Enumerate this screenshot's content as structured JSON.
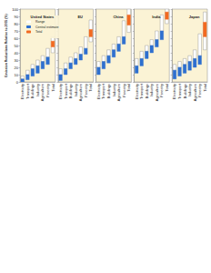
{
  "chart_data": [
    {
      "type": "range_bar",
      "title": "United States",
      "ylabel": "Emission Reductions Relative to 2005 (%)",
      "categories": [
        "Electricity",
        "Transport",
        "Buildings",
        "Industry",
        "Agriculture",
        "Forestry",
        "Total"
      ],
      "series": [
        {
          "name": "Range",
          "color": "#ffffff",
          "low": [
            4,
            10,
            18,
            22,
            28,
            34,
            40
          ],
          "high": [
            8,
            16,
            24,
            30,
            36,
            46,
            62
          ]
        },
        {
          "name": "Central estimate",
          "color": "#2e6fcf",
          "low": [
            0,
            3,
            8,
            12,
            18,
            24,
            null
          ],
          "high": [
            4,
            10,
            18,
            22,
            28,
            34,
            null
          ]
        },
        {
          "name": "Total",
          "color": "#f26a21",
          "low": [
            null,
            null,
            null,
            null,
            null,
            null,
            48
          ],
          "high": [
            null,
            null,
            null,
            null,
            null,
            null,
            56
          ]
        }
      ],
      "ylim": [
        0,
        100
      ],
      "yticks": [
        0,
        10,
        20,
        30,
        40,
        50,
        60,
        70,
        80,
        90,
        100
      ],
      "grid": false,
      "legend": "upper left",
      "tick_labels": true
    },
    {
      "type": "range_bar",
      "title": "EU",
      "categories": [
        "Electricity",
        "Transport",
        "Buildings",
        "Industry",
        "Agriculture",
        "Forestry",
        "Total"
      ],
      "series": [
        {
          "name": "Range",
          "color": "#ffffff",
          "low": [
            10,
            18,
            26,
            32,
            38,
            46,
            55
          ],
          "high": [
            18,
            26,
            34,
            40,
            48,
            62,
            85
          ]
        },
        {
          "name": "Central estimate",
          "color": "#2e6fcf",
          "low": [
            2,
            10,
            18,
            24,
            30,
            38,
            null
          ],
          "high": [
            10,
            18,
            26,
            32,
            38,
            46,
            null
          ]
        },
        {
          "name": "Total",
          "color": "#f26a21",
          "low": [
            null,
            null,
            null,
            null,
            null,
            null,
            62
          ],
          "high": [
            null,
            null,
            null,
            null,
            null,
            null,
            72
          ]
        }
      ],
      "ylim": [
        0,
        100
      ],
      "yticks": [
        0,
        10,
        20,
        30,
        40,
        50,
        60,
        70,
        80,
        90,
        100
      ],
      "grid": false,
      "tick_labels": "x"
    },
    {
      "type": "range_bar",
      "title": "China",
      "categories": [
        "Electricity",
        "Transport",
        "Buildings",
        "Industry",
        "Agriculture",
        "Forestry",
        "Total"
      ],
      "series": [
        {
          "name": "Range",
          "color": "#ffffff",
          "low": [
            20,
            28,
            36,
            44,
            52,
            62,
            68
          ],
          "high": [
            28,
            36,
            44,
            52,
            62,
            84,
            100
          ]
        },
        {
          "name": "Central estimate",
          "color": "#2e6fcf",
          "low": [
            10,
            18,
            26,
            34,
            42,
            52,
            null
          ],
          "high": [
            20,
            28,
            36,
            44,
            52,
            62,
            null
          ]
        },
        {
          "name": "Total",
          "color": "#f26a21",
          "low": [
            null,
            null,
            null,
            null,
            null,
            null,
            78
          ],
          "high": [
            null,
            null,
            null,
            null,
            null,
            null,
            92
          ]
        }
      ],
      "ylim": [
        0,
        100
      ],
      "yticks": [
        0,
        10,
        20,
        30,
        40,
        50,
        60,
        70,
        80,
        90,
        100
      ],
      "grid": false,
      "tick_labels": "x"
    },
    {
      "type": "range_bar",
      "title": "India",
      "categories": [
        "Electricity",
        "Transport",
        "Buildings",
        "Industry",
        "Agriculture",
        "Forestry",
        "Total"
      ],
      "series": [
        {
          "name": "Range",
          "color": "#ffffff",
          "low": [
            22,
            32,
            42,
            50,
            58,
            70,
            80
          ],
          "high": [
            32,
            42,
            50,
            58,
            70,
            92,
            100
          ]
        },
        {
          "name": "Central estimate",
          "color": "#2e6fcf",
          "low": [
            12,
            22,
            32,
            40,
            48,
            58,
            null
          ],
          "high": [
            22,
            32,
            42,
            50,
            58,
            70,
            null
          ]
        },
        {
          "name": "Total",
          "color": "#f26a21",
          "low": [
            null,
            null,
            null,
            null,
            null,
            null,
            86
          ],
          "high": [
            null,
            null,
            null,
            null,
            null,
            null,
            96
          ]
        }
      ],
      "ylim": [
        0,
        100
      ],
      "yticks": [
        0,
        10,
        20,
        30,
        40,
        50,
        60,
        70,
        80,
        90,
        100
      ],
      "grid": false,
      "tick_labels": "x"
    },
    {
      "type": "range_bar",
      "title": "Japan",
      "categories": [
        "Electricity",
        "Transport",
        "Buildings",
        "Industry",
        "Agriculture",
        "Forestry",
        "Total"
      ],
      "series": [
        {
          "name": "Range",
          "color": "#ffffff",
          "low": [
            16,
            20,
            24,
            28,
            32,
            36,
            44
          ],
          "high": [
            24,
            28,
            32,
            36,
            44,
            66,
            96
          ]
        },
        {
          "name": "Central estimate",
          "color": "#2e6fcf",
          "low": [
            4,
            8,
            12,
            16,
            20,
            24,
            null
          ],
          "high": [
            16,
            20,
            24,
            28,
            32,
            36,
            null
          ]
        },
        {
          "name": "Total",
          "color": "#f26a21",
          "low": [
            null,
            null,
            null,
            null,
            null,
            null,
            62
          ],
          "high": [
            null,
            null,
            null,
            null,
            null,
            null,
            82
          ]
        }
      ],
      "ylim": [
        0,
        100
      ],
      "yticks": [
        0,
        10,
        20,
        30,
        40,
        50,
        60,
        70,
        80,
        90,
        100
      ],
      "grid": false,
      "tick_labels": "x"
    }
  ]
}
